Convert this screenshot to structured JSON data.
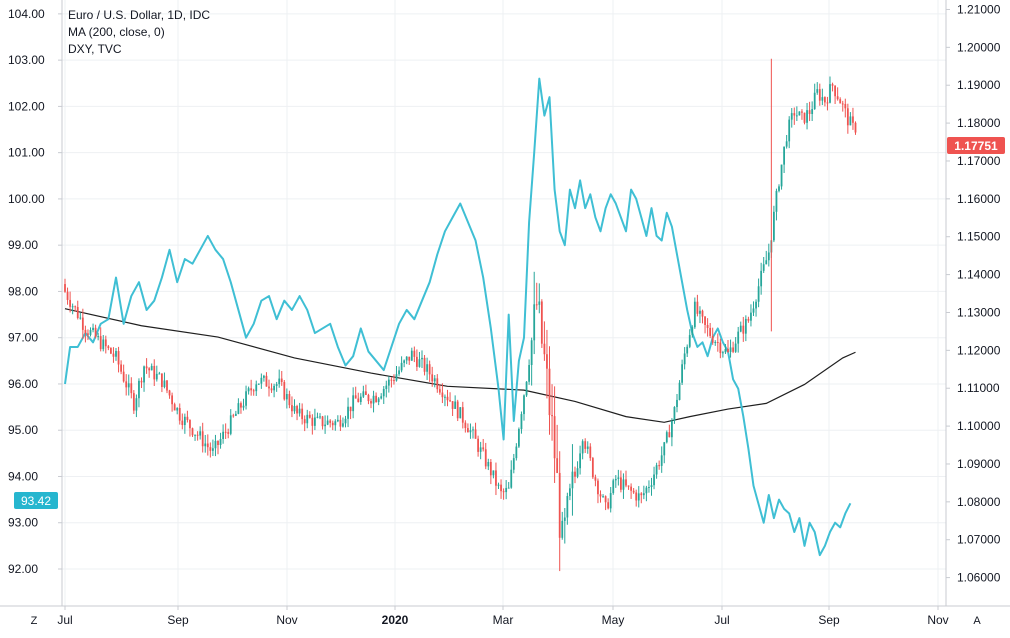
{
  "legend": {
    "line1": "Euro / U.S. Dollar, 1D, IDC",
    "line2": "MA (200, close, 0)",
    "line3": "DXY, TVC"
  },
  "left_badge": "93.42",
  "right_badge": "1.17751",
  "corner_left": "Z",
  "corner_right": "A",
  "colors": {
    "up": "#26a69a",
    "down": "#ef5350",
    "ma": "#1f1f1f",
    "dxy": "#3fbfd4",
    "badge_left": "#26b6cf",
    "badge_right": "#ef5350",
    "grid": "#eef0f3"
  },
  "chart_data": {
    "type": "line",
    "x_axis": {
      "ticks": [
        "Jul",
        "Sep",
        "Nov",
        "2020",
        "Mar",
        "May",
        "Jul",
        "Sep",
        "Nov"
      ],
      "bold_tick": "2020"
    },
    "y_left": {
      "label": "DXY, TVC",
      "ticks": [
        104.0,
        103.0,
        102.0,
        101.0,
        100.0,
        99.0,
        98.0,
        97.0,
        96.0,
        95.0,
        94.0,
        93.0,
        92.0
      ],
      "range": [
        91.2,
        104.3
      ]
    },
    "y_right": {
      "label": "Euro / U.S. Dollar",
      "ticks": [
        1.21,
        1.2,
        1.19,
        1.18,
        1.17,
        1.16,
        1.15,
        1.14,
        1.13,
        1.12,
        1.11,
        1.1,
        1.09,
        1.08,
        1.07,
        1.06
      ],
      "range": [
        1.0525,
        1.2125
      ]
    },
    "series": [
      {
        "name": "Euro / U.S. Dollar, 1D, IDC",
        "kind": "candlestick",
        "axis": "right",
        "close_anchors": [
          [
            0,
            1.1355
          ],
          [
            3,
            1.132
          ],
          [
            8,
            1.126
          ],
          [
            14,
            1.122
          ],
          [
            20,
            1.118
          ],
          [
            27,
            1.106
          ],
          [
            31,
            1.116
          ],
          [
            38,
            1.112
          ],
          [
            45,
            1.103
          ],
          [
            53,
            1.097
          ],
          [
            58,
            1.093
          ],
          [
            66,
            1.102
          ],
          [
            75,
            1.112
          ],
          [
            84,
            1.111
          ],
          [
            91,
            1.103
          ],
          [
            99,
            1.101
          ],
          [
            107,
            1.101
          ],
          [
            114,
            1.107
          ],
          [
            122,
            1.108
          ],
          [
            129,
            1.113
          ],
          [
            136,
            1.119
          ],
          [
            143,
            1.114
          ],
          [
            151,
            1.107
          ],
          [
            158,
            1.1
          ],
          [
            167,
            1.088
          ],
          [
            171,
            1.082
          ],
          [
            174,
            1.083
          ],
          [
            177,
            1.096
          ],
          [
            181,
            1.113
          ],
          [
            185,
            1.132
          ],
          [
            188,
            1.117
          ],
          [
            192,
            1.093
          ],
          [
            195,
            1.068
          ],
          [
            199,
            1.083
          ],
          [
            203,
            1.098
          ],
          [
            207,
            1.088
          ],
          [
            212,
            1.078
          ],
          [
            216,
            1.086
          ],
          [
            221,
            1.083
          ],
          [
            226,
            1.081
          ],
          [
            230,
            1.086
          ],
          [
            235,
            1.094
          ],
          [
            239,
            1.104
          ],
          [
            243,
            1.119
          ],
          [
            247,
            1.131
          ],
          [
            251,
            1.126
          ],
          [
            256,
            1.122
          ],
          [
            260,
            1.119
          ],
          [
            264,
            1.124
          ],
          [
            268,
            1.128
          ],
          [
            272,
            1.137
          ],
          [
            276,
            1.146
          ],
          [
            280,
            1.165
          ],
          [
            283,
            1.177
          ],
          [
            286,
            1.183
          ],
          [
            289,
            1.181
          ],
          [
            292,
            1.183
          ],
          [
            295,
            1.188
          ],
          [
            298,
            1.186
          ],
          [
            301,
            1.19
          ],
          [
            304,
            1.186
          ],
          [
            307,
            1.181
          ],
          [
            310,
            1.1775
          ]
        ],
        "last": 1.17751
      },
      {
        "name": "MA (200, close, 0)",
        "kind": "line",
        "axis": "right",
        "points": [
          [
            0,
            1.131
          ],
          [
            30,
            1.1265
          ],
          [
            60,
            1.1235
          ],
          [
            90,
            1.118
          ],
          [
            120,
            1.114
          ],
          [
            150,
            1.1105
          ],
          [
            180,
            1.1095
          ],
          [
            200,
            1.1065
          ],
          [
            220,
            1.1025
          ],
          [
            235,
            1.101
          ],
          [
            245,
            1.1025
          ],
          [
            260,
            1.1045
          ],
          [
            275,
            1.106
          ],
          [
            290,
            1.111
          ],
          [
            305,
            1.118
          ],
          [
            310,
            1.1195
          ]
        ]
      },
      {
        "name": "DXY, TVC",
        "kind": "line",
        "axis": "left",
        "points": [
          [
            0,
            96.0
          ],
          [
            2,
            96.8
          ],
          [
            5,
            96.8
          ],
          [
            8,
            97.1
          ],
          [
            11,
            96.9
          ],
          [
            14,
            97.3
          ],
          [
            17,
            97.4
          ],
          [
            20,
            98.3
          ],
          [
            23,
            97.3
          ],
          [
            26,
            97.9
          ],
          [
            29,
            98.2
          ],
          [
            32,
            97.6
          ],
          [
            35,
            97.8
          ],
          [
            38,
            98.3
          ],
          [
            41,
            98.9
          ],
          [
            44,
            98.2
          ],
          [
            47,
            98.7
          ],
          [
            50,
            98.6
          ],
          [
            53,
            98.9
          ],
          [
            56,
            99.2
          ],
          [
            59,
            98.9
          ],
          [
            62,
            98.7
          ],
          [
            65,
            98.2
          ],
          [
            68,
            97.6
          ],
          [
            71,
            97.0
          ],
          [
            74,
            97.3
          ],
          [
            77,
            97.8
          ],
          [
            80,
            97.9
          ],
          [
            83,
            97.4
          ],
          [
            86,
            97.8
          ],
          [
            89,
            97.6
          ],
          [
            92,
            97.9
          ],
          [
            95,
            97.6
          ],
          [
            98,
            97.1
          ],
          [
            101,
            97.2
          ],
          [
            104,
            97.3
          ],
          [
            107,
            96.8
          ],
          [
            110,
            96.4
          ],
          [
            113,
            96.6
          ],
          [
            116,
            97.2
          ],
          [
            119,
            96.7
          ],
          [
            122,
            96.5
          ],
          [
            125,
            96.3
          ],
          [
            128,
            96.8
          ],
          [
            131,
            97.3
          ],
          [
            134,
            97.6
          ],
          [
            137,
            97.4
          ],
          [
            140,
            97.8
          ],
          [
            143,
            98.2
          ],
          [
            146,
            98.8
          ],
          [
            149,
            99.3
          ],
          [
            152,
            99.6
          ],
          [
            155,
            99.9
          ],
          [
            158,
            99.5
          ],
          [
            161,
            99.1
          ],
          [
            164,
            98.3
          ],
          [
            167,
            97.2
          ],
          [
            170,
            95.9
          ],
          [
            172,
            94.8
          ],
          [
            174,
            97.5
          ],
          [
            176,
            95.2
          ],
          [
            178,
            96.5
          ],
          [
            180,
            97.0
          ],
          [
            182,
            99.5
          ],
          [
            184,
            101.0
          ],
          [
            186,
            102.6
          ],
          [
            188,
            101.8
          ],
          [
            190,
            102.2
          ],
          [
            192,
            100.2
          ],
          [
            194,
            99.3
          ],
          [
            196,
            99.0
          ],
          [
            198,
            100.2
          ],
          [
            200,
            99.8
          ],
          [
            202,
            100.4
          ],
          [
            204,
            99.8
          ],
          [
            206,
            100.1
          ],
          [
            208,
            99.6
          ],
          [
            210,
            99.3
          ],
          [
            212,
            99.8
          ],
          [
            214,
            100.1
          ],
          [
            216,
            99.9
          ],
          [
            218,
            99.6
          ],
          [
            220,
            99.3
          ],
          [
            222,
            100.2
          ],
          [
            224,
            100.0
          ],
          [
            226,
            99.6
          ],
          [
            228,
            99.2
          ],
          [
            230,
            99.8
          ],
          [
            232,
            99.2
          ],
          [
            234,
            99.1
          ],
          [
            236,
            99.7
          ],
          [
            238,
            99.4
          ],
          [
            240,
            98.8
          ],
          [
            242,
            98.2
          ],
          [
            244,
            97.6
          ],
          [
            246,
            97.1
          ],
          [
            248,
            96.8
          ],
          [
            250,
            96.9
          ],
          [
            252,
            96.6
          ],
          [
            254,
            97.0
          ],
          [
            256,
            97.2
          ],
          [
            258,
            96.9
          ],
          [
            260,
            96.7
          ],
          [
            262,
            96.1
          ],
          [
            264,
            95.9
          ],
          [
            266,
            95.3
          ],
          [
            268,
            94.6
          ],
          [
            270,
            93.8
          ],
          [
            272,
            93.4
          ],
          [
            274,
            93.0
          ],
          [
            276,
            93.6
          ],
          [
            278,
            93.1
          ],
          [
            280,
            93.5
          ],
          [
            282,
            93.3
          ],
          [
            284,
            93.2
          ],
          [
            286,
            92.8
          ],
          [
            288,
            93.1
          ],
          [
            290,
            92.5
          ],
          [
            292,
            93.0
          ],
          [
            294,
            92.8
          ],
          [
            296,
            92.3
          ],
          [
            298,
            92.5
          ],
          [
            300,
            92.8
          ],
          [
            302,
            93.0
          ],
          [
            304,
            92.9
          ],
          [
            306,
            93.2
          ],
          [
            308,
            93.42
          ]
        ]
      }
    ]
  }
}
